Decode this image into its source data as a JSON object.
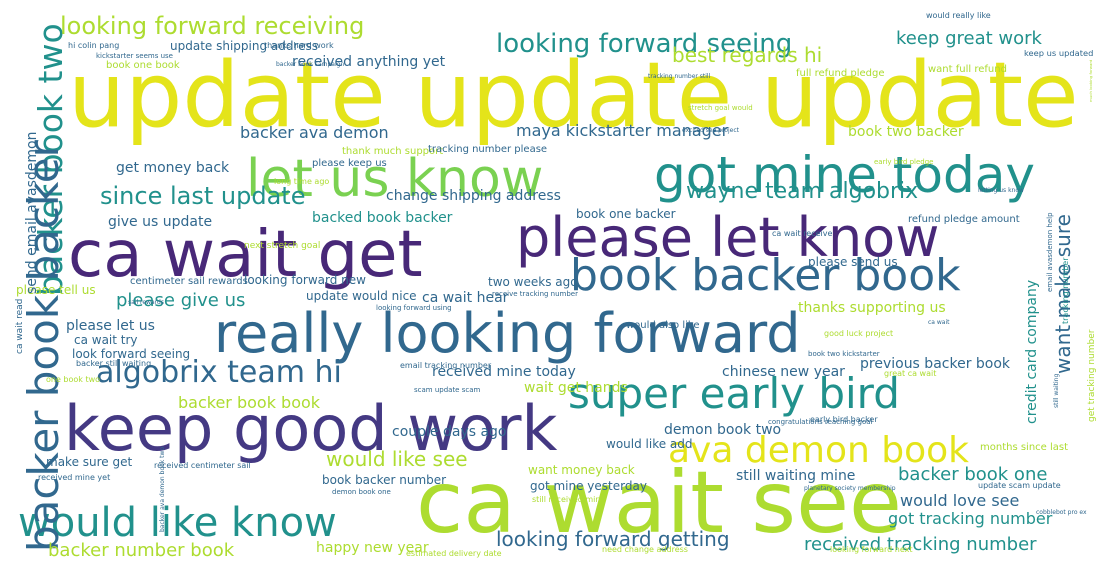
{
  "palette": {
    "yellow": "#e4e41a",
    "lime": "#addc30",
    "green": "#7ad151",
    "emerald": "#35b779",
    "teal": "#21918c",
    "blue": "#31688e",
    "indigo": "#443983",
    "purple": "#482878",
    "dark": "#440154"
  },
  "phrases": [
    {
      "text": "update update update",
      "color": "yellow"
    },
    {
      "text": "ca wait see",
      "color": "lime"
    },
    {
      "text": "ca wait get",
      "color": "purple"
    },
    {
      "text": "please let know",
      "color": "purple"
    },
    {
      "text": "keep good work",
      "color": "indigo"
    },
    {
      "text": "really looking forward",
      "color": "blue"
    },
    {
      "text": "let us know",
      "color": "green"
    },
    {
      "text": "got mine today",
      "color": "teal"
    },
    {
      "text": "backer book two",
      "color": "teal"
    },
    {
      "text": "book backer book",
      "color": "blue"
    },
    {
      "text": "super early bird",
      "color": "teal"
    },
    {
      "text": "ava demon book",
      "color": "yellow"
    },
    {
      "text": "would like know",
      "color": "teal"
    },
    {
      "text": "backer book backer",
      "color": "blue"
    },
    {
      "text": "algobrix team hi",
      "color": "blue"
    },
    {
      "text": "looking forward seeing",
      "color": "teal"
    },
    {
      "text": "looking forward receiving",
      "color": "lime"
    },
    {
      "text": "since last update",
      "color": "teal"
    },
    {
      "text": "wayne team algobrix",
      "color": "teal"
    },
    {
      "text": "best regards hi",
      "color": "lime"
    },
    {
      "text": "keep great work",
      "color": "teal"
    },
    {
      "text": "want make sure",
      "color": "blue"
    },
    {
      "text": "received tracking number",
      "color": "teal"
    },
    {
      "text": "looking forward getting",
      "color": "blue"
    },
    {
      "text": "backer number book",
      "color": "lime"
    },
    {
      "text": "backer book book",
      "color": "lime"
    },
    {
      "text": "would like see",
      "color": "lime"
    },
    {
      "text": "backer book one",
      "color": "teal"
    },
    {
      "text": "would love see",
      "color": "blue"
    },
    {
      "text": "got tracking number",
      "color": "teal"
    },
    {
      "text": "please give us",
      "color": "teal"
    },
    {
      "text": "backer ava demon",
      "color": "blue"
    },
    {
      "text": "maya kickstarter manager",
      "color": "blue"
    },
    {
      "text": "received anything yet",
      "color": "blue"
    },
    {
      "text": "change shipping address",
      "color": "blue"
    },
    {
      "text": "get money back",
      "color": "blue"
    },
    {
      "text": "give us update",
      "color": "blue"
    },
    {
      "text": "backed book backer",
      "color": "teal"
    },
    {
      "text": "received mine today",
      "color": "blue"
    },
    {
      "text": "wait get hands",
      "color": "lime"
    },
    {
      "text": "chinese new year",
      "color": "blue"
    },
    {
      "text": "credit card company",
      "color": "teal"
    },
    {
      "text": "book two backer",
      "color": "lime"
    },
    {
      "text": "book one backer",
      "color": "blue"
    },
    {
      "text": "update would nice",
      "color": "blue"
    },
    {
      "text": "ca wait hear",
      "color": "blue"
    },
    {
      "text": "please let us",
      "color": "blue"
    },
    {
      "text": "ca wait try",
      "color": "blue"
    },
    {
      "text": "look forward seeing",
      "color": "blue"
    },
    {
      "text": "two weeks ago",
      "color": "blue"
    },
    {
      "text": "centimeter sail rewards",
      "color": "blue"
    },
    {
      "text": "looking forward new",
      "color": "blue"
    },
    {
      "text": "please tell us",
      "color": "lime"
    },
    {
      "text": "please send us",
      "color": "blue"
    },
    {
      "text": "thanks supporting us",
      "color": "lime"
    },
    {
      "text": "previous backer book",
      "color": "blue"
    },
    {
      "text": "demon book two",
      "color": "blue"
    },
    {
      "text": "couple days ago",
      "color": "blue"
    },
    {
      "text": "still waiting mine",
      "color": "blue"
    },
    {
      "text": "got mine yesterday",
      "color": "blue"
    },
    {
      "text": "happy new year",
      "color": "lime"
    },
    {
      "text": "book backer number",
      "color": "blue"
    },
    {
      "text": "make sure get",
      "color": "blue"
    },
    {
      "text": "want money back",
      "color": "lime"
    },
    {
      "text": "would like add",
      "color": "blue"
    },
    {
      "text": "update shipping address",
      "color": "blue"
    },
    {
      "text": "book one book",
      "color": "lime"
    },
    {
      "text": "keep us updated",
      "color": "blue"
    },
    {
      "text": "want full refund",
      "color": "lime"
    },
    {
      "text": "full refund pledge",
      "color": "lime"
    },
    {
      "text": "refund pledge amount",
      "color": "blue"
    },
    {
      "text": "thank much support",
      "color": "lime"
    },
    {
      "text": "tracking number please",
      "color": "blue"
    },
    {
      "text": "please keep us",
      "color": "blue"
    },
    {
      "text": "long time ago",
      "color": "lime"
    },
    {
      "text": "send email avasdemon",
      "color": "blue"
    },
    {
      "text": "next stretch goal",
      "color": "lime"
    },
    {
      "text": "ca wait receive",
      "color": "blue"
    },
    {
      "text": "would also like",
      "color": "blue"
    },
    {
      "text": "thanks hard work",
      "color": "blue"
    },
    {
      "text": "months since last",
      "color": "lime"
    },
    {
      "text": "hi colin pang",
      "color": "blue"
    },
    {
      "text": "would really like",
      "color": "blue"
    },
    {
      "text": "received centimeter sail",
      "color": "blue"
    },
    {
      "text": "update scam update",
      "color": "blue"
    },
    {
      "text": "estimated delivery date",
      "color": "lime"
    },
    {
      "text": "need change address",
      "color": "lime"
    },
    {
      "text": "looking forward next",
      "color": "lime"
    },
    {
      "text": "still received mine",
      "color": "lime"
    },
    {
      "text": "early bird backer",
      "color": "blue"
    },
    {
      "text": "get tracking number",
      "color": "lime"
    },
    {
      "text": "email tracking number",
      "color": "blue"
    },
    {
      "text": "great ca wait",
      "color": "lime"
    },
    {
      "text": "book two kickstarter",
      "color": "blue"
    },
    {
      "text": "early bird pledge",
      "color": "lime"
    },
    {
      "text": "stretch goal would",
      "color": "lime"
    },
    {
      "text": "backer still waiting",
      "color": "blue"
    },
    {
      "text": "congratulations reaching goal",
      "color": "blue"
    },
    {
      "text": "ca wait read",
      "color": "blue"
    },
    {
      "text": "kickstarter seems use",
      "color": "blue"
    },
    {
      "text": "backer book campaign",
      "color": "blue"
    },
    {
      "text": "planetary society membership",
      "color": "blue"
    },
    {
      "text": "backer ava demon book two",
      "color": "blue"
    },
    {
      "text": "tracking number still",
      "color": "blue"
    },
    {
      "text": "demon book one",
      "color": "blue"
    },
    {
      "text": "receive tracking number",
      "color": "blue"
    },
    {
      "text": "looking forward using",
      "color": "blue"
    },
    {
      "text": "received mine yet",
      "color": "blue"
    },
    {
      "text": "one book two",
      "color": "lime"
    },
    {
      "text": "good luck project",
      "color": "lime"
    },
    {
      "text": "still waiting",
      "color": "blue"
    },
    {
      "text": "much looking forward",
      "color": "lime"
    },
    {
      "text": "excited see project",
      "color": "blue"
    },
    {
      "text": "sail rewards",
      "color": "blue"
    },
    {
      "text": "letting us know",
      "color": "blue"
    },
    {
      "text": "cobblebot pro ex",
      "color": "blue"
    },
    {
      "text": "email avasdemon help",
      "color": "blue"
    },
    {
      "text": "tracking number",
      "color": "teal"
    },
    {
      "text": "scam update scam",
      "color": "blue"
    },
    {
      "text": "ca wait",
      "color": "blue"
    }
  ]
}
